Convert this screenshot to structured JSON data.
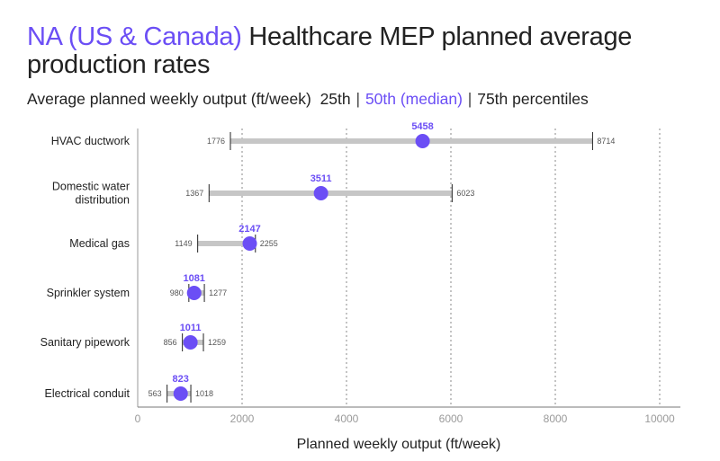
{
  "title": {
    "accent": "NA (US & Canada)",
    "rest": " Healthcare MEP planned average production rates"
  },
  "subtitle": {
    "main": "Average planned weekly output (ft/week)",
    "p25": "25th",
    "sep": "|",
    "p50": "50th (median)",
    "p75": "75th percentiles"
  },
  "colors": {
    "accent": "#6b4ef5",
    "range_bar": "#c6c6c6",
    "grid": "#8a8a8a",
    "text": "#222222"
  },
  "chart_data": {
    "type": "range-dot",
    "xlabel": "Planned weekly output (ft/week)",
    "xlim": [
      0,
      10000
    ],
    "xticks": [
      0,
      2000,
      4000,
      6000,
      8000,
      10000
    ],
    "grid": "vertical dotted",
    "categories": [
      {
        "label": [
          "HVAC ductwork"
        ],
        "p25": 1776,
        "median": 5458,
        "p75": 8714
      },
      {
        "label": [
          "Domestic water",
          "distribution"
        ],
        "p25": 1367,
        "median": 3511,
        "p75": 6023
      },
      {
        "label": [
          "Medical gas"
        ],
        "p25": 1149,
        "median": 2147,
        "p75": 2255
      },
      {
        "label": [
          "Sprinkler system"
        ],
        "p25": 980,
        "median": 1081,
        "p75": 1277
      },
      {
        "label": [
          "Sanitary pipework"
        ],
        "p25": 856,
        "median": 1011,
        "p75": 1259
      },
      {
        "label": [
          "Electrical conduit"
        ],
        "p25": 563,
        "median": 823,
        "p75": 1018
      }
    ]
  }
}
